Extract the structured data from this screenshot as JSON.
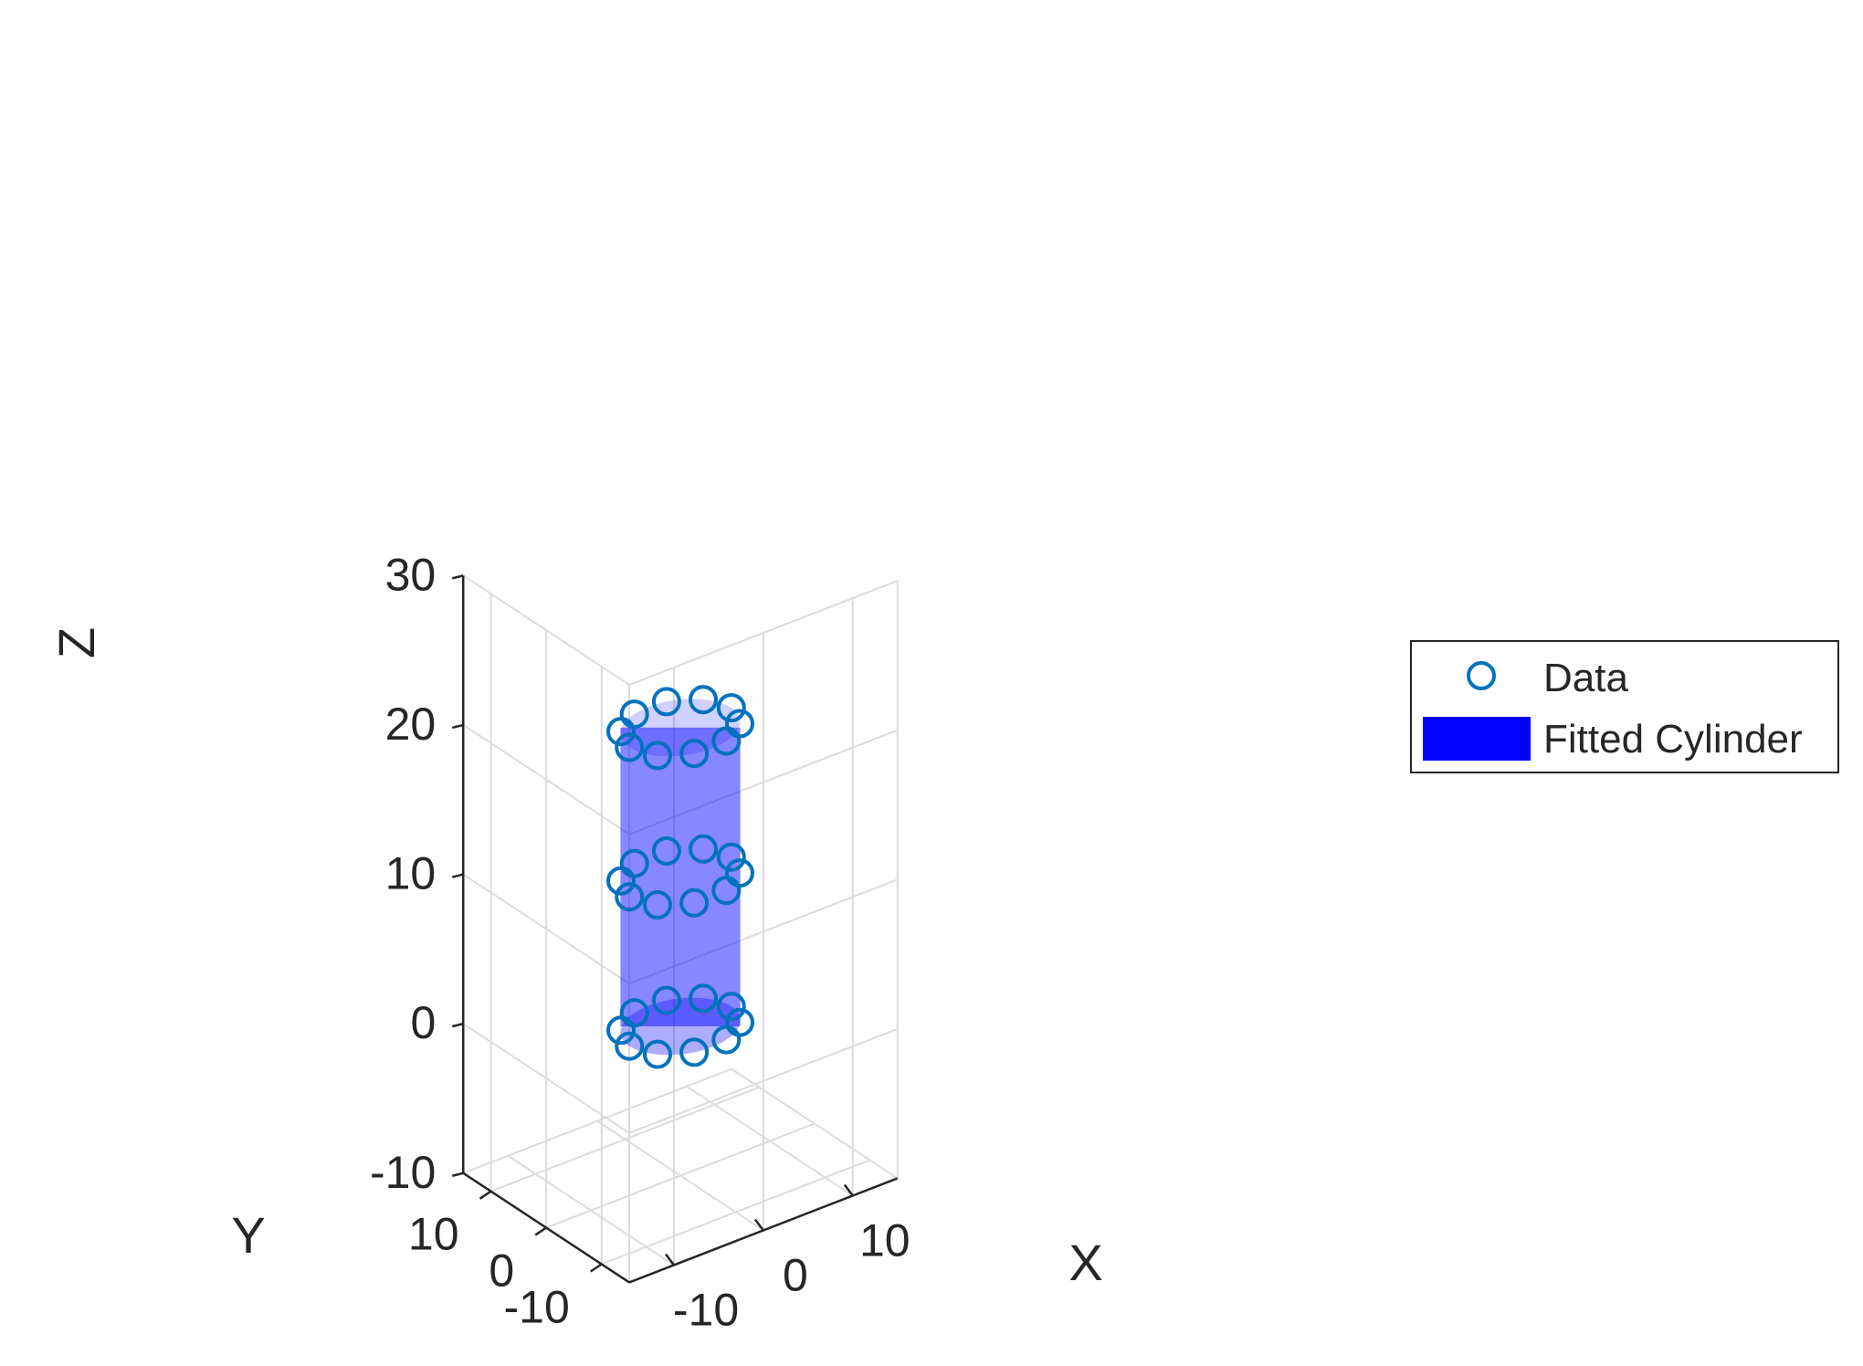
{
  "colors": {
    "background": "#ffffff",
    "grid": "#dcdcdc",
    "axis": "#262626",
    "marker": "#0072bd",
    "cylinder_fill": "#0000ff",
    "legend_border": "#262626"
  },
  "chart_data": {
    "type": "scatter",
    "projection": "3d",
    "title": "",
    "xlabel": "X",
    "ylabel": "Y",
    "zlabel": "Z",
    "xlim": [
      -15,
      15
    ],
    "ylim": [
      -15,
      15
    ],
    "zlim": [
      -10,
      30
    ],
    "xticks": [
      -10,
      0,
      10
    ],
    "yticks": [
      -10,
      0,
      10
    ],
    "zticks": [
      -10,
      0,
      10,
      20,
      30
    ],
    "xtick_labels": [
      "-10",
      "0",
      "10"
    ],
    "ytick_labels": [
      "-10",
      "0",
      "10"
    ],
    "ztick_labels": [
      "-10",
      "0",
      "10",
      "20",
      "30"
    ],
    "grid": true,
    "box": false,
    "legend": {
      "placement": "east-outside",
      "entries": [
        {
          "label": "Data",
          "type": "marker",
          "marker": "circle",
          "color": "#0072bd"
        },
        {
          "label": "Fitted Cylinder",
          "type": "patch",
          "color": "#0000ff"
        }
      ]
    },
    "series": [
      {
        "name": "Data",
        "type": "scatter3",
        "marker": "circle",
        "color": "#0072bd",
        "points": [
          {
            "x": 5.7,
            "y": 0.0,
            "z": 0
          },
          {
            "x": 4.6,
            "y": 3.3,
            "z": 0
          },
          {
            "x": 1.8,
            "y": 5.4,
            "z": 0
          },
          {
            "x": -1.8,
            "y": 5.4,
            "z": 0
          },
          {
            "x": -4.6,
            "y": 3.3,
            "z": 0
          },
          {
            "x": -5.7,
            "y": 0.0,
            "z": 0
          },
          {
            "x": -4.6,
            "y": -3.3,
            "z": 0
          },
          {
            "x": -1.8,
            "y": -5.4,
            "z": 0
          },
          {
            "x": 1.8,
            "y": -5.4,
            "z": 0
          },
          {
            "x": 4.6,
            "y": -3.3,
            "z": 0
          },
          {
            "x": 5.7,
            "y": 0.0,
            "z": 10
          },
          {
            "x": 4.6,
            "y": 3.3,
            "z": 10
          },
          {
            "x": 1.8,
            "y": 5.4,
            "z": 10
          },
          {
            "x": -1.8,
            "y": 5.4,
            "z": 10
          },
          {
            "x": -4.6,
            "y": 3.3,
            "z": 10
          },
          {
            "x": -5.7,
            "y": 0.0,
            "z": 10
          },
          {
            "x": -4.6,
            "y": -3.3,
            "z": 10
          },
          {
            "x": -1.8,
            "y": -5.4,
            "z": 10
          },
          {
            "x": 1.8,
            "y": -5.4,
            "z": 10
          },
          {
            "x": 4.6,
            "y": -3.3,
            "z": 10
          },
          {
            "x": 5.7,
            "y": 0.0,
            "z": 20
          },
          {
            "x": 4.6,
            "y": 3.3,
            "z": 20
          },
          {
            "x": 1.8,
            "y": 5.4,
            "z": 20
          },
          {
            "x": -1.8,
            "y": 5.4,
            "z": 20
          },
          {
            "x": -4.6,
            "y": 3.3,
            "z": 20
          },
          {
            "x": -5.7,
            "y": 0.0,
            "z": 20
          },
          {
            "x": -4.6,
            "y": -3.3,
            "z": 20
          },
          {
            "x": -1.8,
            "y": -5.4,
            "z": 20
          },
          {
            "x": 1.8,
            "y": -5.4,
            "z": 20
          },
          {
            "x": 4.6,
            "y": -3.3,
            "z": 20
          }
        ]
      },
      {
        "name": "Fitted Cylinder",
        "type": "cylinder",
        "color": "#0000ff",
        "axis_x": 0,
        "axis_y": 0,
        "radius": 5.7,
        "z_bottom": 0,
        "z_top": 20
      }
    ]
  }
}
